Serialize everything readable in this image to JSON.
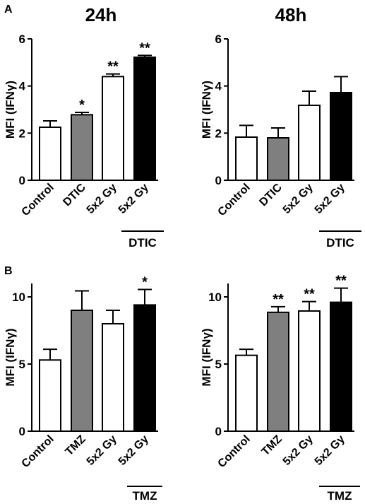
{
  "figure": {
    "panel_labels": [
      "A",
      "B"
    ],
    "column_titles": [
      "24h",
      "48h"
    ]
  },
  "chart_data": [
    {
      "type": "bar",
      "panel": "A",
      "title": "24h",
      "ylabel": "MFI (IFNγ)",
      "ylim": [
        0,
        6
      ],
      "yticks": [
        0,
        2,
        4,
        6
      ],
      "categories": [
        "Control",
        "DTIC",
        "5x2 Gy",
        "5x2 Gy"
      ],
      "values": [
        2.25,
        2.78,
        4.4,
        5.22
      ],
      "errors": [
        0.27,
        0.1,
        0.11,
        0.08
      ],
      "fills": [
        "#ffffff",
        "#7f7f7f",
        "#ffffff",
        "#000000"
      ],
      "significance": [
        "",
        "*",
        "**",
        "**"
      ],
      "group_label": "DTIC"
    },
    {
      "type": "bar",
      "panel": "A",
      "title": "48h",
      "ylabel": "MFI (IFNγ)",
      "ylim": [
        0,
        6
      ],
      "yticks": [
        0,
        2,
        4,
        6
      ],
      "categories": [
        "Control",
        "DTIC",
        "5x2 Gy",
        "5x2 Gy"
      ],
      "values": [
        1.83,
        1.8,
        3.18,
        3.72
      ],
      "errors": [
        0.5,
        0.42,
        0.6,
        0.68
      ],
      "fills": [
        "#ffffff",
        "#7f7f7f",
        "#ffffff",
        "#000000"
      ],
      "significance": [
        "",
        "",
        "",
        ""
      ],
      "group_label": "DTIC"
    },
    {
      "type": "bar",
      "panel": "B",
      "ylabel": "MFI (IFNγ)",
      "ylim": [
        0,
        11
      ],
      "yticks": [
        0,
        5,
        10
      ],
      "categories": [
        "Control",
        "TMZ",
        "5x2 Gy",
        "5x2 Gy"
      ],
      "values": [
        5.3,
        9.0,
        8.0,
        9.4
      ],
      "errors": [
        0.8,
        1.45,
        1.0,
        1.15
      ],
      "fills": [
        "#ffffff",
        "#7f7f7f",
        "#ffffff",
        "#000000"
      ],
      "significance": [
        "",
        "",
        "",
        "*"
      ],
      "group_label": "TMZ"
    },
    {
      "type": "bar",
      "panel": "B",
      "ylabel": "MFI (IFNγ)",
      "ylim": [
        0,
        11
      ],
      "yticks": [
        0,
        5,
        10
      ],
      "categories": [
        "Control",
        "TMZ",
        "5x2 Gy",
        "5x2 Gy"
      ],
      "values": [
        5.65,
        8.85,
        8.95,
        9.6
      ],
      "errors": [
        0.45,
        0.42,
        0.7,
        1.05
      ],
      "fills": [
        "#ffffff",
        "#7f7f7f",
        "#ffffff",
        "#000000"
      ],
      "significance": [
        "",
        "**",
        "**",
        "**"
      ],
      "group_label": "TMZ"
    }
  ]
}
